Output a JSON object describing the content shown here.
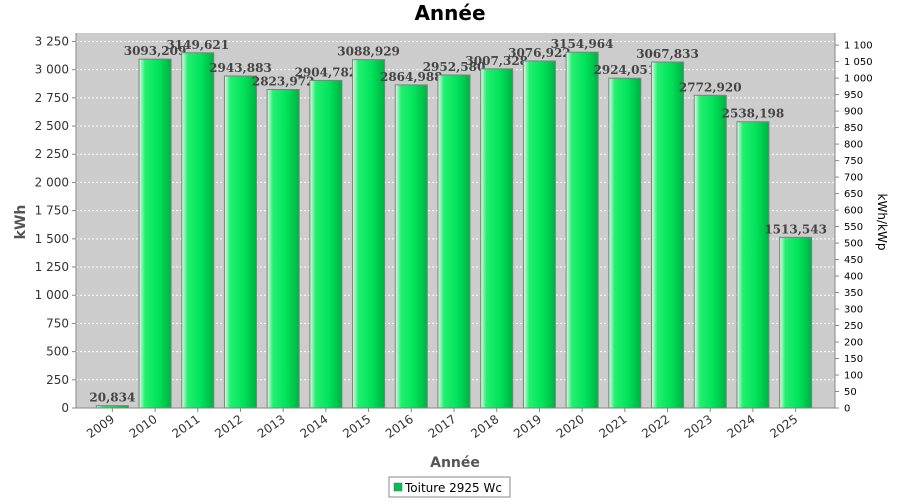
{
  "chart_data": {
    "type": "bar",
    "title": "Année",
    "xlabel": "Année",
    "ylabel": "kWh",
    "y2label": "kWh/kWp",
    "categories": [
      "2009",
      "2010",
      "2011",
      "2012",
      "2013",
      "2014",
      "2015",
      "2016",
      "2017",
      "2018",
      "2019",
      "2020",
      "2021",
      "2022",
      "2023",
      "2024",
      "2025"
    ],
    "series": [
      {
        "name": "Toiture 2925 Wc",
        "values": [
          20.834,
          3093.209,
          3149.621,
          2943.883,
          2823.972,
          2904.782,
          3088.929,
          2864.988,
          2952.58,
          3007.328,
          3076.922,
          3154.964,
          2924.051,
          3067.833,
          2772.92,
          2538.198,
          1513.543
        ],
        "labels": [
          "20,834",
          "3093,209",
          "3149,621",
          "2943,883",
          "2823,972",
          "2904,782",
          "3088,929",
          "2864,988",
          "2952,580",
          "3007,328",
          "3076,922",
          "3154,964",
          "2924,051",
          "3067,833",
          "2772,920",
          "2538,198",
          "1513,543"
        ]
      }
    ],
    "ylim": [
      0,
      3325
    ],
    "yticks": [
      0,
      250,
      500,
      750,
      1000,
      1250,
      1500,
      1750,
      2000,
      2250,
      2500,
      2750,
      3000,
      3250
    ],
    "ytick_labels": [
      "0",
      "250",
      "500",
      "750",
      "1 000",
      "1 250",
      "1 500",
      "1 750",
      "2 000",
      "2 250",
      "2 500",
      "2 750",
      "3 000",
      "3 250"
    ],
    "y2lim": [
      0,
      1136.75
    ],
    "y2ticks": [
      0,
      50,
      100,
      150,
      200,
      250,
      300,
      350,
      400,
      450,
      500,
      550,
      600,
      650,
      700,
      750,
      800,
      850,
      900,
      950,
      1000,
      1050,
      1100
    ],
    "y2tick_labels": [
      "0",
      "50",
      "100",
      "150",
      "200",
      "250",
      "300",
      "350",
      "400",
      "450",
      "500",
      "550",
      "600",
      "650",
      "700",
      "750",
      "800",
      "850",
      "900",
      "950",
      "1 000",
      "1 050",
      "1 100"
    ],
    "grid": true,
    "legend_position": "bottom",
    "colors": {
      "bar": "#00e35a",
      "plot_background": "#cccccc",
      "grid": "#ffffff"
    }
  }
}
